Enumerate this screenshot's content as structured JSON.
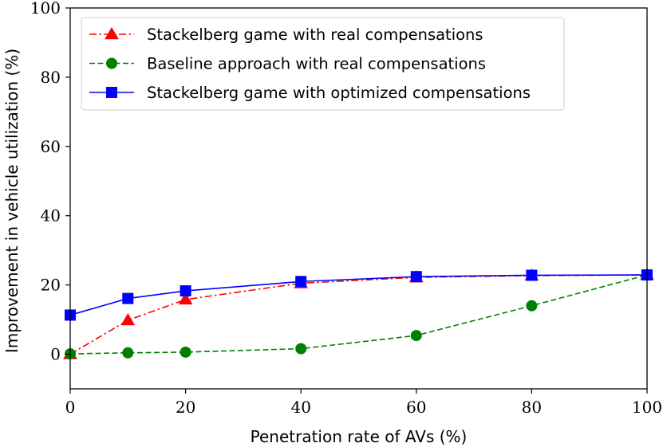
{
  "chart_data": {
    "type": "line",
    "title": "",
    "xlabel": "Penetration rate of AVs (%)",
    "ylabel": "Improvement in vehicle utilization (%)",
    "xlim": [
      0,
      100
    ],
    "ylim": [
      -10,
      100
    ],
    "x_ticks": [
      0,
      20,
      40,
      60,
      80,
      100
    ],
    "y_ticks": [
      0,
      20,
      40,
      60,
      80,
      100
    ],
    "grid": false,
    "legend_position": "top-left",
    "series": [
      {
        "name": "Stackelberg game with real compensations",
        "color": "#ff0000",
        "line_style": "dashdot",
        "marker": "triangle",
        "x": [
          0,
          10,
          20,
          40,
          60,
          80,
          100
        ],
        "values": [
          0,
          9.8,
          15.8,
          20.5,
          22.2,
          22.7,
          22.9
        ]
      },
      {
        "name": "Baseline approach with real compensations",
        "color": "#008000",
        "line_style": "dashed",
        "marker": "circle",
        "x": [
          0,
          10,
          20,
          40,
          60,
          80,
          100
        ],
        "values": [
          0.1,
          0.4,
          0.6,
          1.6,
          5.4,
          14.0,
          22.9
        ]
      },
      {
        "name": "Stackelberg game with optimized compensations",
        "color": "#0000ff",
        "line_style": "solid",
        "marker": "square",
        "x": [
          0,
          10,
          20,
          40,
          60,
          80,
          100
        ],
        "values": [
          11.3,
          16.1,
          18.3,
          21.0,
          22.4,
          22.8,
          22.9
        ]
      }
    ]
  }
}
